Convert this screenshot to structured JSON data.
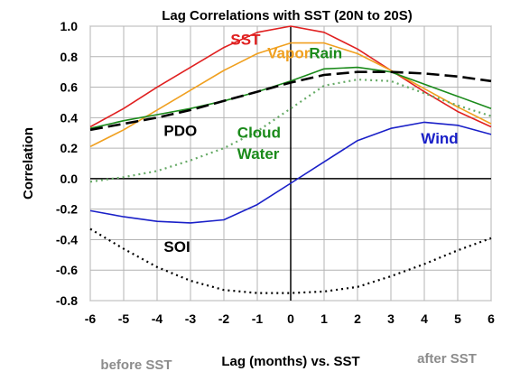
{
  "chart_data": {
    "type": "line",
    "title": "Lag Correlations with SST (20N to 20S)",
    "xlabel": "Lag (months) vs. SST",
    "ylabel": "Correlation",
    "xlim": [
      -6,
      6
    ],
    "ylim": [
      -0.8,
      1.0
    ],
    "grid": true,
    "x": [
      -6,
      -5,
      -4,
      -3,
      -2,
      -1,
      0,
      1,
      2,
      3,
      4,
      5,
      6
    ],
    "x_ticks": [
      "-6",
      "-5",
      "-4",
      "-3",
      "-2",
      "-1",
      "0",
      "1",
      "2",
      "3",
      "4",
      "5",
      "6"
    ],
    "y_ticks": [
      "1.0",
      "0.8",
      "0.6",
      "0.4",
      "0.2",
      "0.0",
      "-0.2",
      "-0.4",
      "-0.6",
      "-0.8"
    ],
    "notes": {
      "before": "before SST",
      "after": "after SST"
    },
    "series": [
      {
        "name": "SST",
        "color": "#e02020",
        "style": "solid",
        "values": [
          0.34,
          0.46,
          0.6,
          0.73,
          0.86,
          0.96,
          1.0,
          0.96,
          0.85,
          0.71,
          0.57,
          0.44,
          0.34
        ]
      },
      {
        "name": "Vapor",
        "color": "#f0a020",
        "style": "solid",
        "values": [
          0.21,
          0.32,
          0.45,
          0.58,
          0.71,
          0.82,
          0.89,
          0.89,
          0.82,
          0.71,
          0.59,
          0.47,
          0.36
        ]
      },
      {
        "name": "Rain",
        "color": "#1a8a1a",
        "style": "solid",
        "values": [
          0.33,
          0.38,
          0.42,
          0.46,
          0.51,
          0.57,
          0.64,
          0.72,
          0.73,
          0.7,
          0.62,
          0.54,
          0.46
        ]
      },
      {
        "name": "Cloud Water",
        "color": "#66aa66",
        "style": "dotted",
        "values": [
          -0.02,
          0.01,
          0.05,
          0.12,
          0.2,
          0.31,
          0.46,
          0.61,
          0.65,
          0.64,
          0.56,
          0.48,
          0.41
        ]
      },
      {
        "name": "PDO",
        "color": "#000000",
        "style": "dashed",
        "values": [
          0.32,
          0.36,
          0.4,
          0.45,
          0.51,
          0.57,
          0.63,
          0.68,
          0.7,
          0.7,
          0.69,
          0.67,
          0.64
        ]
      },
      {
        "name": "Wind",
        "color": "#1a20c8",
        "style": "solid",
        "values": [
          -0.21,
          -0.25,
          -0.28,
          -0.29,
          -0.27,
          -0.17,
          -0.03,
          0.11,
          0.25,
          0.33,
          0.37,
          0.35,
          0.29
        ]
      },
      {
        "name": "SOI",
        "color": "#000000",
        "style": "dotted",
        "values": [
          -0.33,
          -0.46,
          -0.58,
          -0.67,
          -0.73,
          -0.75,
          -0.75,
          -0.74,
          -0.71,
          -0.64,
          -0.56,
          -0.47,
          -0.39
        ]
      }
    ],
    "series_labels": [
      {
        "text": "SST",
        "color": "#e02020",
        "at": [
          -1.8,
          0.88
        ]
      },
      {
        "text": "Vapor",
        "color": "#f0a020",
        "at": [
          -0.7,
          0.79
        ]
      },
      {
        "text": "Rain",
        "color": "#1a8a1a",
        "at": [
          0.55,
          0.79
        ]
      },
      {
        "text": "PDO",
        "color": "#000000",
        "at": [
          -3.8,
          0.28
        ]
      },
      {
        "text": "Cloud",
        "color": "#1a8a1a",
        "at": [
          -1.6,
          0.27
        ]
      },
      {
        "text": "Water",
        "color": "#1a8a1a",
        "at": [
          -1.6,
          0.13
        ]
      },
      {
        "text": "Wind",
        "color": "#1a20c8",
        "at": [
          3.9,
          0.23
        ]
      },
      {
        "text": "SOI",
        "color": "#000000",
        "at": [
          -3.8,
          -0.48
        ]
      }
    ]
  }
}
